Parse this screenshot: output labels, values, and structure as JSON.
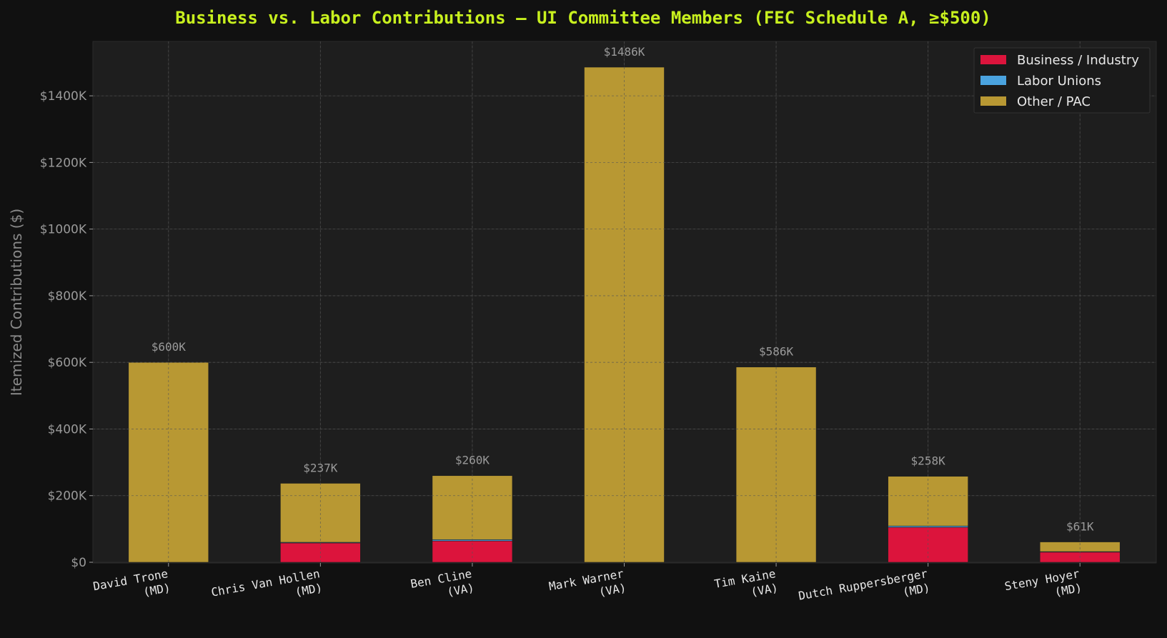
{
  "chart_data": {
    "type": "bar",
    "stacked": true,
    "title": "Business vs. Labor Contributions — UI Committee Members (FEC Schedule A, ≥$500)",
    "xlabel": "",
    "ylabel": "Itemized Contributions ($)",
    "ylim": [
      0,
      1560000
    ],
    "yticks": [
      0,
      200000,
      400000,
      600000,
      800000,
      1000000,
      1200000,
      1400000
    ],
    "ytick_labels": [
      "$0",
      "$200K",
      "$400K",
      "$600K",
      "$800K",
      "$1000K",
      "$1200K",
      "$1400K"
    ],
    "categories": [
      [
        "David Trone",
        "(MD)"
      ],
      [
        "Chris Van Hollen",
        "(MD)"
      ],
      [
        "Ben Cline",
        "(VA)"
      ],
      [
        "Mark Warner",
        "(VA)"
      ],
      [
        "Tim Kaine",
        "(VA)"
      ],
      [
        "Dutch Ruppersberger",
        "(MD)"
      ],
      [
        "Steny Hoyer",
        "(MD)"
      ]
    ],
    "series": [
      {
        "name": "Business / Industry",
        "color": "#dc143c",
        "values": [
          0,
          58000,
          64000,
          0,
          0,
          105000,
          31000
        ]
      },
      {
        "name": "Labor Unions",
        "color": "#4aa3df",
        "values": [
          0,
          2000,
          4000,
          0,
          0,
          4000,
          1000
        ]
      },
      {
        "name": "Other / PAC",
        "color": "#b89833",
        "values": [
          600000,
          177000,
          192000,
          1486000,
          586000,
          149000,
          29000
        ]
      }
    ],
    "total_labels": [
      "$600K",
      "$237K",
      "$260K",
      "$1486K",
      "$586K",
      "$258K",
      "$61K"
    ],
    "grid": true,
    "legend_position": "top-right"
  },
  "colors": {
    "background": "#111111",
    "plot_background": "#1e1e1e",
    "title": "#c8f01e"
  }
}
